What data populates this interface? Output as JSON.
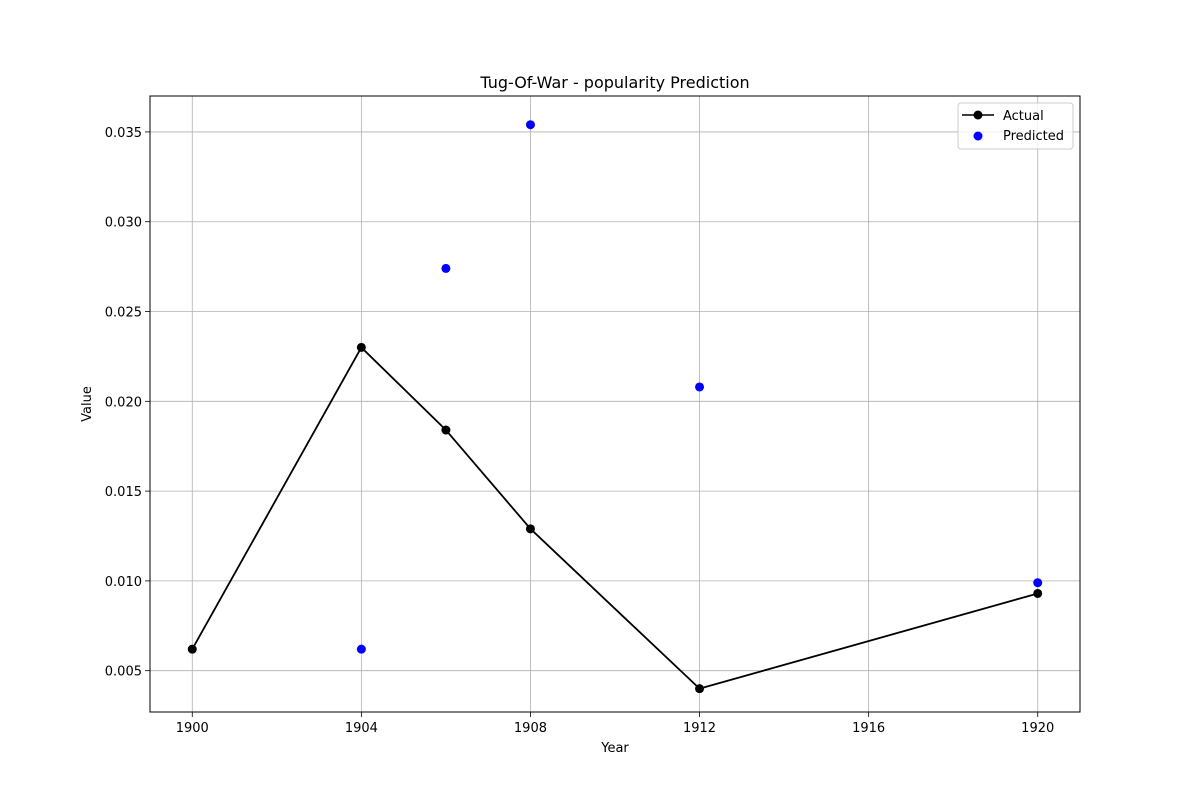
{
  "chart_data": {
    "type": "line",
    "title": "Tug-Of-War - popularity Prediction",
    "xlabel": "Year",
    "ylabel": "Value",
    "xlim": [
      1899.0,
      1921.0
    ],
    "ylim": [
      0.0027,
      0.037
    ],
    "x_ticks": [
      1900,
      1904,
      1908,
      1912,
      1916,
      1920
    ],
    "y_ticks": [
      0.005,
      0.01,
      0.015,
      0.02,
      0.025,
      0.03,
      0.035
    ],
    "y_tick_labels": [
      "0.005",
      "0.010",
      "0.015",
      "0.020",
      "0.025",
      "0.030",
      "0.035"
    ],
    "grid": true,
    "legend_position": "top-right",
    "series": [
      {
        "name": "Actual",
        "kind": "line-marker",
        "color": "#000000",
        "points": [
          {
            "x": 1900,
            "y": 0.0062
          },
          {
            "x": 1904,
            "y": 0.023
          },
          {
            "x": 1906,
            "y": 0.0184
          },
          {
            "x": 1908,
            "y": 0.0129
          },
          {
            "x": 1912,
            "y": 0.004
          },
          {
            "x": 1920,
            "y": 0.0093
          }
        ]
      },
      {
        "name": "Predicted",
        "kind": "scatter",
        "color": "#0000ff",
        "points": [
          {
            "x": 1904,
            "y": 0.0062
          },
          {
            "x": 1906,
            "y": 0.0274
          },
          {
            "x": 1908,
            "y": 0.0354
          },
          {
            "x": 1912,
            "y": 0.0208
          },
          {
            "x": 1920,
            "y": 0.0099
          }
        ]
      }
    ]
  }
}
